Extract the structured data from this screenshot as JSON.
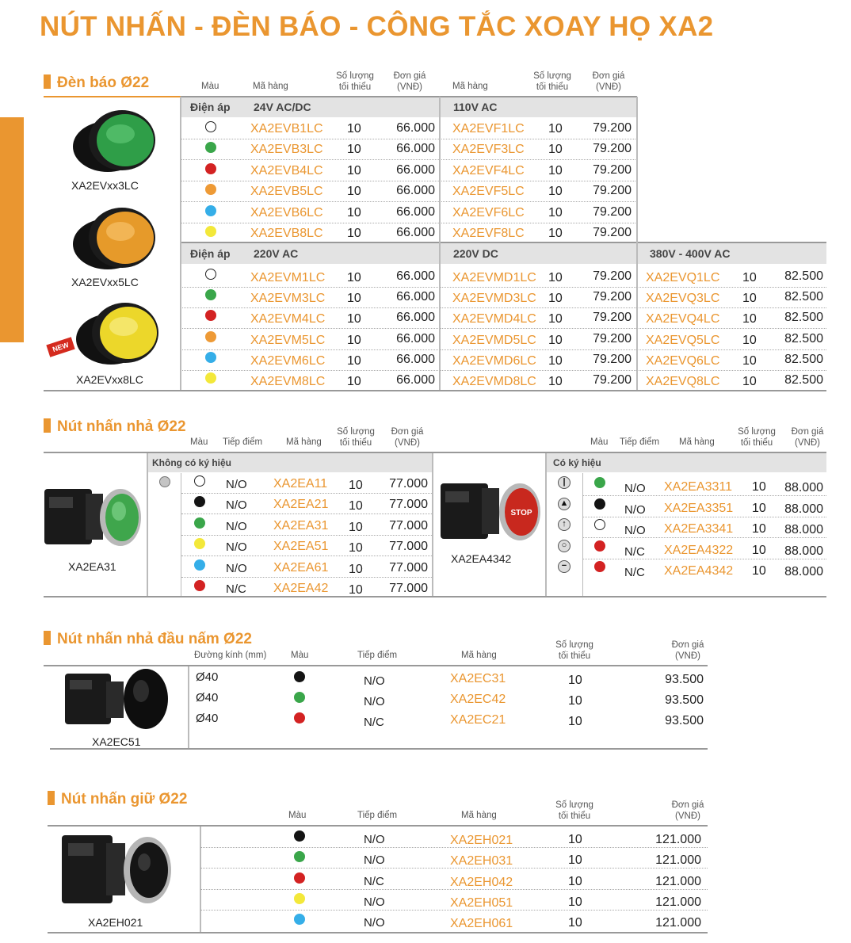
{
  "title": "NÚT NHẤN -  ĐÈN BÁO - CÔNG TẮC XOAY HỌ XA2",
  "colors": {
    "accent": "#ea9630",
    "green": "#3aa64a",
    "red": "#d32222",
    "orange": "#ee9a36",
    "blue": "#35aee8",
    "yellow": "#f3e83a",
    "black": "#141414",
    "white": "#ffffff"
  },
  "den_bao": {
    "title": "Đèn báo Ø22",
    "headers": {
      "mau": "Màu",
      "ma_hang": "Mã hàng",
      "sl": "Số lượng\ntối thiểu",
      "gia": "Đơn giá\n(VNĐ)",
      "ma_hang2": "Mã hàng",
      "sl2": "Số lượng\ntối thiểu",
      "gia2": "Đơn giá\n(VNĐ)"
    },
    "dien_ap": "Điện áp",
    "captions": [
      "XA2EVxx3LC",
      "XA2EVxx5LC",
      "XA2EVxx8LC"
    ],
    "new_label": "NEW",
    "colors_order": [
      "white",
      "green",
      "red",
      "orange",
      "blue",
      "yellow"
    ],
    "group1": {
      "v1": "24V AC/DC",
      "v2": "110V AC",
      "rows": [
        {
          "c1": "XA2EVB1LC",
          "q1": "10",
          "p1": "66.000",
          "c2": "XA2EVF1LC",
          "q2": "10",
          "p2": "79.200"
        },
        {
          "c1": "XA2EVB3LC",
          "q1": "10",
          "p1": "66.000",
          "c2": "XA2EVF3LC",
          "q2": "10",
          "p2": "79.200"
        },
        {
          "c1": "XA2EVB4LC",
          "q1": "10",
          "p1": "66.000",
          "c2": "XA2EVF4LC",
          "q2": "10",
          "p2": "79.200"
        },
        {
          "c1": "XA2EVB5LC",
          "q1": "10",
          "p1": "66.000",
          "c2": "XA2EVF5LC",
          "q2": "10",
          "p2": "79.200"
        },
        {
          "c1": "XA2EVB6LC",
          "q1": "10",
          "p1": "66.000",
          "c2": "XA2EVF6LC",
          "q2": "10",
          "p2": "79.200"
        },
        {
          "c1": "XA2EVB8LC",
          "q1": "10",
          "p1": "66.000",
          "c2": "XA2EVF8LC",
          "q2": "10",
          "p2": "79.200"
        }
      ]
    },
    "group2": {
      "v1": "220V AC",
      "v2": "220V DC",
      "v3": "380V - 400V AC",
      "rows": [
        {
          "c1": "XA2EVM1LC",
          "q1": "10",
          "p1": "66.000",
          "c2": "XA2EVMD1LC",
          "q2": "10",
          "p2": "79.200",
          "c3": "XA2EVQ1LC",
          "q3": "10",
          "p3": "82.500"
        },
        {
          "c1": "XA2EVM3LC",
          "q1": "10",
          "p1": "66.000",
          "c2": "XA2EVMD3LC",
          "q2": "10",
          "p2": "79.200",
          "c3": "XA2EVQ3LC",
          "q3": "10",
          "p3": "82.500"
        },
        {
          "c1": "XA2EVM4LC",
          "q1": "10",
          "p1": "66.000",
          "c2": "XA2EVMD4LC",
          "q2": "10",
          "p2": "79.200",
          "c3": "XA2EVQ4LC",
          "q3": "10",
          "p3": "82.500"
        },
        {
          "c1": "XA2EVM5LC",
          "q1": "10",
          "p1": "66.000",
          "c2": "XA2EVMD5LC",
          "q2": "10",
          "p2": "79.200",
          "c3": "XA2EVQ5LC",
          "q3": "10",
          "p3": "82.500"
        },
        {
          "c1": "XA2EVM6LC",
          "q1": "10",
          "p1": "66.000",
          "c2": "XA2EVMD6LC",
          "q2": "10",
          "p2": "79.200",
          "c3": "XA2EVQ6LC",
          "q3": "10",
          "p3": "82.500"
        },
        {
          "c1": "XA2EVM8LC",
          "q1": "10",
          "p1": "66.000",
          "c2": "XA2EVMD8LC",
          "q2": "10",
          "p2": "79.200",
          "c3": "XA2EVQ8LC",
          "q3": "10",
          "p3": "82.500"
        }
      ]
    }
  },
  "nut_nhan_nha": {
    "title": "Nút nhấn nhả Ø22",
    "headers": {
      "mau": "Màu",
      "tiep_diem": "Tiếp điểm",
      "ma_hang": "Mã hàng",
      "sl": "Số lượng\ntối thiểu",
      "gia": "Đơn giá\n(VNĐ)"
    },
    "left": {
      "band": "Không có ký hiệu",
      "caption": "XA2EA31",
      "rows": [
        {
          "color": "white",
          "contact": "N/O",
          "code": "XA2EA11",
          "qty": "10",
          "price": "77.000"
        },
        {
          "color": "black",
          "contact": "N/O",
          "code": "XA2EA21",
          "qty": "10",
          "price": "77.000"
        },
        {
          "color": "green",
          "contact": "N/O",
          "code": "XA2EA31",
          "qty": "10",
          "price": "77.000"
        },
        {
          "color": "yellow",
          "contact": "N/O",
          "code": "XA2EA51",
          "qty": "10",
          "price": "77.000"
        },
        {
          "color": "blue",
          "contact": "N/O",
          "code": "XA2EA61",
          "qty": "10",
          "price": "77.000"
        },
        {
          "color": "red",
          "contact": "N/C",
          "code": "XA2EA42",
          "qty": "10",
          "price": "77.000"
        }
      ]
    },
    "right": {
      "band": "Có ký hiệu",
      "caption": "XA2EA4342",
      "stop_label": "STOP",
      "rows": [
        {
          "symbol": "|",
          "color": "green",
          "contact": "N/O",
          "code": "XA2EA3311",
          "qty": "10",
          "price": "88.000"
        },
        {
          "symbol": "▲",
          "color": "black",
          "contact": "N/O",
          "code": "XA2EA3351",
          "qty": "10",
          "price": "88.000"
        },
        {
          "symbol": "↑",
          "color": "white",
          "contact": "N/O",
          "code": "XA2EA3341",
          "qty": "10",
          "price": "88.000"
        },
        {
          "symbol": "○",
          "color": "red",
          "contact": "N/C",
          "code": "XA2EA4322",
          "qty": "10",
          "price": "88.000"
        },
        {
          "symbol": "−",
          "color": "red",
          "contact": "N/C",
          "code": "XA2EA4342",
          "qty": "10",
          "price": "88.000"
        }
      ]
    }
  },
  "nut_nam": {
    "title": "Nút nhấn nhả đầu nấm Ø22",
    "headers": {
      "duong_kinh": "Đường kính (mm)",
      "mau": "Màu",
      "tiep_diem": "Tiếp điểm",
      "ma_hang": "Mã hàng",
      "sl": "Số lượng\ntối thiểu",
      "gia": "Đơn giá\n(VNĐ)"
    },
    "caption": "XA2EC51",
    "rows": [
      {
        "dk": "Ø40",
        "color": "black",
        "contact": "N/O",
        "code": "XA2EC31",
        "qty": "10",
        "price": "93.500"
      },
      {
        "dk": "Ø40",
        "color": "green",
        "contact": "N/O",
        "code": "XA2EC42",
        "qty": "10",
        "price": "93.500"
      },
      {
        "dk": "Ø40",
        "color": "red",
        "contact": "N/C",
        "code": "XA2EC21",
        "qty": "10",
        "price": "93.500"
      }
    ]
  },
  "nut_giu": {
    "title": "Nút nhấn giữ Ø22",
    "headers": {
      "mau": "Màu",
      "tiep_diem": "Tiếp điểm",
      "ma_hang": "Mã hàng",
      "sl": "Số lượng\ntối thiểu",
      "gia": "Đơn giá\n(VNĐ)"
    },
    "caption": "XA2EH021",
    "rows": [
      {
        "color": "black",
        "contact": "N/O",
        "code": "XA2EH021",
        "qty": "10",
        "price": "121.000"
      },
      {
        "color": "green",
        "contact": "N/O",
        "code": "XA2EH031",
        "qty": "10",
        "price": "121.000"
      },
      {
        "color": "red",
        "contact": "N/C",
        "code": "XA2EH042",
        "qty": "10",
        "price": "121.000"
      },
      {
        "color": "yellow",
        "contact": "N/O",
        "code": "XA2EH051",
        "qty": "10",
        "price": "121.000"
      },
      {
        "color": "blue",
        "contact": "N/O",
        "code": "XA2EH061",
        "qty": "10",
        "price": "121.000"
      }
    ]
  }
}
